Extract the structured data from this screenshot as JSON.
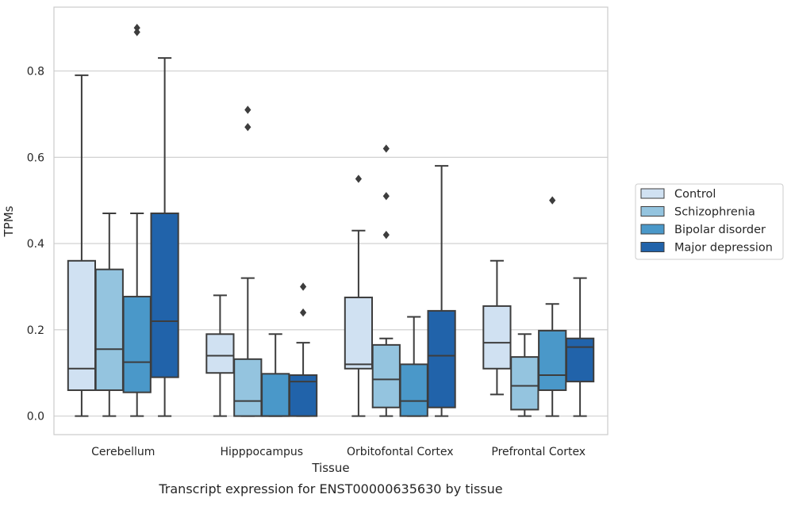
{
  "caption": "Transcript expression for ENST00000635630 by tissue",
  "chart_data": {
    "type": "boxplot",
    "title": "",
    "xlabel": "Tissue",
    "ylabel": "TPMs",
    "ylim": [
      -0.043,
      0.948
    ],
    "yticks": [
      0.0,
      0.2,
      0.4,
      0.6,
      0.8
    ],
    "ytick_labels": [
      "0.0",
      "0.2",
      "0.4",
      "0.6",
      "0.8"
    ],
    "grid": "horizontal",
    "legend_position": "right",
    "categories": [
      "Cerebellum",
      "Hipppocampus",
      "Orbitofontal Cortex",
      "Prefrontal Cortex"
    ],
    "series": [
      {
        "name": "Control",
        "color": "#d0e1f2",
        "boxes": [
          {
            "whislo": 0.0,
            "q1": 0.06,
            "med": 0.11,
            "q3": 0.36,
            "whishi": 0.79,
            "fliers": []
          },
          {
            "whislo": 0.0,
            "q1": 0.1,
            "med": 0.14,
            "q3": 0.19,
            "whishi": 0.28,
            "fliers": []
          },
          {
            "whislo": 0.0,
            "q1": 0.11,
            "med": 0.12,
            "q3": 0.275,
            "whishi": 0.43,
            "fliers": [
              0.55
            ]
          },
          {
            "whislo": 0.05,
            "q1": 0.11,
            "med": 0.17,
            "q3": 0.255,
            "whishi": 0.36,
            "fliers": []
          }
        ]
      },
      {
        "name": "Schizophrenia",
        "color": "#94c4df",
        "boxes": [
          {
            "whislo": 0.0,
            "q1": 0.06,
            "med": 0.155,
            "q3": 0.34,
            "whishi": 0.47,
            "fliers": []
          },
          {
            "whislo": 0.0,
            "q1": 0.0,
            "med": 0.035,
            "q3": 0.132,
            "whishi": 0.32,
            "fliers": [
              0.67,
              0.71
            ]
          },
          {
            "whislo": 0.0,
            "q1": 0.02,
            "med": 0.085,
            "q3": 0.165,
            "whishi": 0.18,
            "fliers": [
              0.42,
              0.51,
              0.62
            ]
          },
          {
            "whislo": 0.0,
            "q1": 0.015,
            "med": 0.07,
            "q3": 0.137,
            "whishi": 0.19,
            "fliers": []
          }
        ]
      },
      {
        "name": "Bipolar disorder",
        "color": "#4a98c9",
        "boxes": [
          {
            "whislo": 0.0,
            "q1": 0.055,
            "med": 0.125,
            "q3": 0.277,
            "whishi": 0.47,
            "fliers": [
              0.89,
              0.9
            ]
          },
          {
            "whislo": 0.0,
            "q1": 0.0,
            "med": 0.0,
            "q3": 0.098,
            "whishi": 0.19,
            "fliers": []
          },
          {
            "whislo": 0.0,
            "q1": 0.0,
            "med": 0.035,
            "q3": 0.12,
            "whishi": 0.23,
            "fliers": []
          },
          {
            "whislo": 0.0,
            "q1": 0.06,
            "med": 0.095,
            "q3": 0.198,
            "whishi": 0.26,
            "fliers": [
              0.5
            ]
          }
        ]
      },
      {
        "name": "Major depression",
        "color": "#2163aa",
        "boxes": [
          {
            "whislo": 0.0,
            "q1": 0.09,
            "med": 0.22,
            "q3": 0.47,
            "whishi": 0.83,
            "fliers": []
          },
          {
            "whislo": 0.0,
            "q1": 0.0,
            "med": 0.08,
            "q3": 0.095,
            "whishi": 0.17,
            "fliers": [
              0.24,
              0.3
            ]
          },
          {
            "whislo": 0.0,
            "q1": 0.02,
            "med": 0.14,
            "q3": 0.244,
            "whishi": 0.58,
            "fliers": []
          },
          {
            "whislo": 0.0,
            "q1": 0.08,
            "med": 0.16,
            "q3": 0.18,
            "whishi": 0.32,
            "fliers": []
          }
        ]
      }
    ]
  }
}
